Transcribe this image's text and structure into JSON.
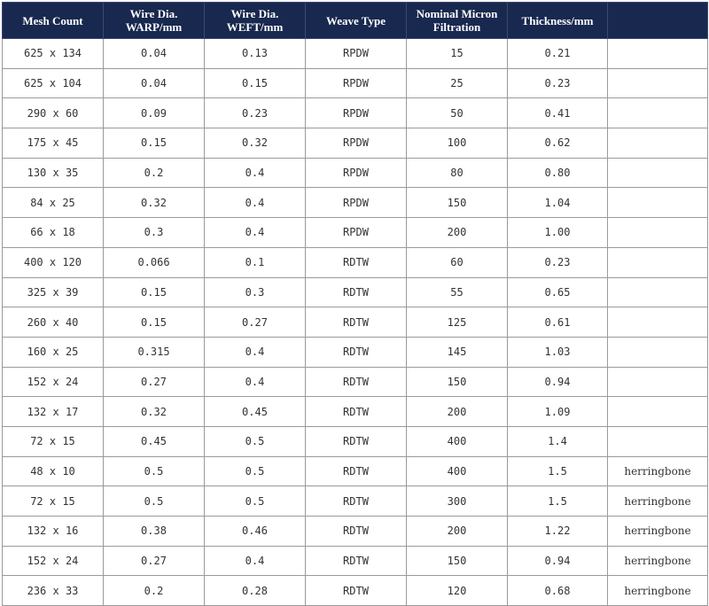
{
  "table": {
    "headers": [
      "Mesh Count",
      "Wire Dia.\nWARP/mm",
      "Wire Dia.\nWEFT/mm",
      "Weave Type",
      "Nominal Micron\nFiltration",
      "Thickness/mm",
      ""
    ],
    "rows": [
      [
        "625 x 134",
        "0.04",
        "0.13",
        "RPDW",
        "15",
        "0.21",
        ""
      ],
      [
        "625 x 104",
        "0.04",
        "0.15",
        "RPDW",
        "25",
        "0.23",
        ""
      ],
      [
        "290 x 60",
        "0.09",
        "0.23",
        "RPDW",
        "50",
        "0.41",
        ""
      ],
      [
        "175 x 45",
        "0.15",
        "0.32",
        "RPDW",
        "100",
        "0.62",
        ""
      ],
      [
        "130 x 35",
        "0.2",
        "0.4",
        "RPDW",
        "80",
        "0.80",
        ""
      ],
      [
        "84 x 25",
        "0.32",
        "0.4",
        "RPDW",
        "150",
        "1.04",
        ""
      ],
      [
        "66 x 18",
        "0.3",
        "0.4",
        "RPDW",
        "200",
        "1.00",
        ""
      ],
      [
        "400 x 120",
        "0.066",
        "0.1",
        "RDTW",
        "60",
        "0.23",
        ""
      ],
      [
        "325 x 39",
        "0.15",
        "0.3",
        "RDTW",
        "55",
        "0.65",
        ""
      ],
      [
        "260 x 40",
        "0.15",
        "0.27",
        "RDTW",
        "125",
        "0.61",
        ""
      ],
      [
        "160 x 25",
        "0.315",
        "0.4",
        "RDTW",
        "145",
        "1.03",
        ""
      ],
      [
        "152 x 24",
        "0.27",
        "0.4",
        "RDTW",
        "150",
        "0.94",
        ""
      ],
      [
        "132 x 17",
        "0.32",
        "0.45",
        "RDTW",
        "200",
        "1.09",
        ""
      ],
      [
        "72 x 15",
        "0.45",
        "0.5",
        "RDTW",
        "400",
        "1.4",
        ""
      ],
      [
        "48 x 10",
        "0.5",
        "0.5",
        "RDTW",
        "400",
        "1.5",
        "herringbone"
      ],
      [
        "72 x 15",
        "0.5",
        "0.5",
        "RDTW",
        "300",
        "1.5",
        "herringbone"
      ],
      [
        "132 x 16",
        "0.38",
        "0.46",
        "RDTW",
        "200",
        "1.22",
        "herringbone"
      ],
      [
        "152 x 24",
        "0.27",
        "0.4",
        "RDTW",
        "150",
        "0.94",
        "herringbone"
      ],
      [
        "236 x 33",
        "0.2",
        "0.28",
        "RDTW",
        "120",
        "0.68",
        "herringbone"
      ]
    ]
  },
  "colors": {
    "header_background": "#18284f",
    "header_text": "#ffffff",
    "cell_text": "#333333"
  }
}
